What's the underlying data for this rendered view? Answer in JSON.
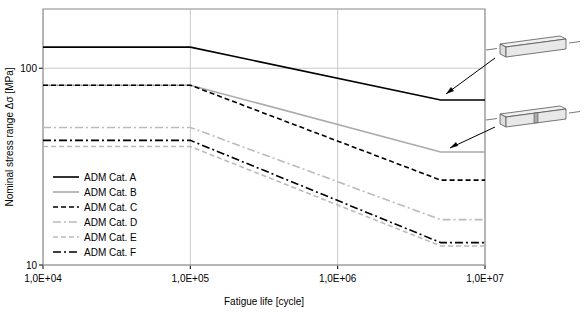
{
  "chart_data": {
    "type": "line",
    "x_label": "Fatigue life [cycle]",
    "y_label": "Nominal stress range Δσ [MPa]",
    "log": true,
    "grid": true,
    "legend": "lower left",
    "xlim": [
      10000,
      10000000
    ],
    "ylim": [
      10,
      200
    ],
    "xticks": [
      {
        "value": 10000,
        "label": "1,0E+04"
      },
      {
        "value": 100000,
        "label": "1,0E+05"
      },
      {
        "value": 1000000,
        "label": "1,0E+06"
      },
      {
        "value": 10000000,
        "label": "1,0E+07"
      }
    ],
    "yticks": [
      10,
      100
    ],
    "x": [
      10000,
      100000,
      5000000,
      10000000
    ],
    "series": [
      {
        "name": "ADM Cat. A",
        "color": "#000000",
        "line_style": "solid",
        "values": [
          128,
          128,
          69,
          69
        ]
      },
      {
        "name": "ADM Cat. B",
        "color": "#aaaaaa",
        "line_style": "solid",
        "values": [
          82,
          82,
          37.5,
          37.5
        ]
      },
      {
        "name": "ADM Cat. C",
        "color": "#000000",
        "line_style": "dashed",
        "values": [
          82,
          82,
          27,
          27
        ]
      },
      {
        "name": "ADM Cat. D",
        "color": "#bbbbbb",
        "line_style": "dashdot",
        "values": [
          50,
          50,
          17,
          17
        ]
      },
      {
        "name": "ADM Cat. E",
        "color": "#bbbbbb",
        "line_style": "dashed",
        "values": [
          40,
          40,
          12.5,
          12.5
        ]
      },
      {
        "name": "ADM Cat. F",
        "color": "#000000",
        "line_style": "dashdot",
        "values": [
          43,
          43,
          13,
          13
        ]
      }
    ]
  }
}
